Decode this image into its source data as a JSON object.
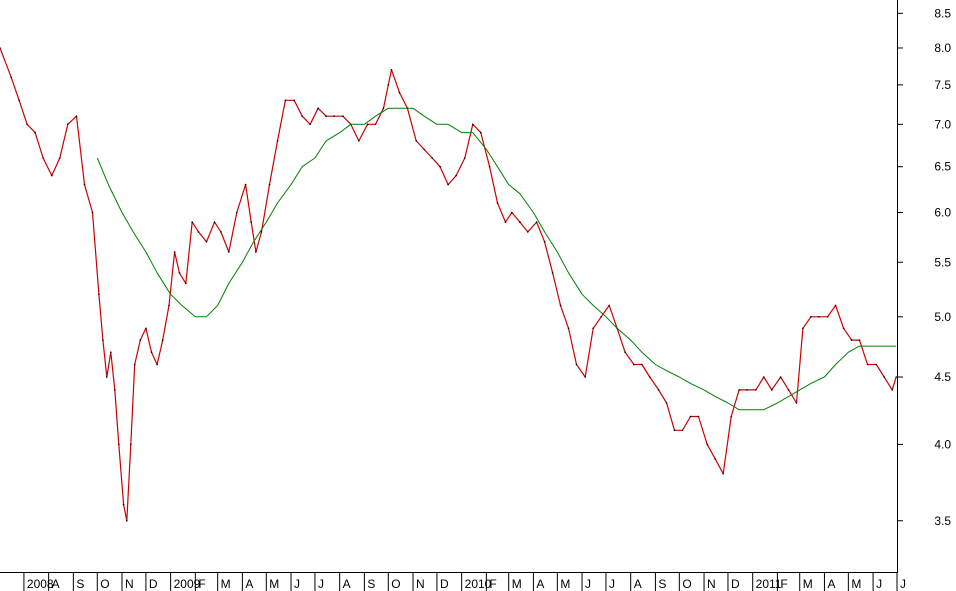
{
  "chart_data": {
    "type": "line",
    "title": "",
    "xlabel": "",
    "ylabel": "",
    "y_scale": "log",
    "ylim": [
      3.2,
      8.7
    ],
    "xlim": [
      "2008-06-01",
      "2011-07-01"
    ],
    "y_ticks": [
      "3.5",
      "4.0",
      "4.5",
      "5.0",
      "5.5",
      "6.0",
      "6.5",
      "7.0",
      "7.5",
      "8.0",
      "8.5"
    ],
    "x_ticks": [
      "2008",
      "A",
      "S",
      "O",
      "N",
      "D",
      "2009",
      "F",
      "M",
      "A",
      "M",
      "J",
      "J",
      "A",
      "S",
      "O",
      "N",
      "D",
      "2010",
      "F",
      "M",
      "A",
      "M",
      "J",
      "J",
      "A",
      "S",
      "O",
      "N",
      "D",
      "2011",
      "F",
      "M",
      "A",
      "M",
      "J",
      "J"
    ],
    "x_tick_dates": [
      "2008-07-01",
      "2008-08-01",
      "2008-09-01",
      "2008-10-01",
      "2008-11-01",
      "2008-12-01",
      "2009-01-01",
      "2009-02-01",
      "2009-03-01",
      "2009-04-01",
      "2009-05-01",
      "2009-06-01",
      "2009-07-01",
      "2009-08-01",
      "2009-09-01",
      "2009-10-01",
      "2009-11-01",
      "2009-12-01",
      "2010-01-01",
      "2010-02-01",
      "2010-03-01",
      "2010-04-01",
      "2010-05-01",
      "2010-06-01",
      "2010-07-01",
      "2010-08-01",
      "2010-09-01",
      "2010-10-01",
      "2010-11-01",
      "2010-12-01",
      "2011-01-01",
      "2011-02-01",
      "2011-03-01",
      "2011-04-01",
      "2011-05-01",
      "2011-06-01",
      "2011-07-01"
    ],
    "grid": false,
    "series": [
      {
        "color": "#cc0000",
        "x": [
          "2008-06-01",
          "2008-06-15",
          "2008-06-25",
          "2008-07-05",
          "2008-07-15",
          "2008-07-25",
          "2008-08-05",
          "2008-08-15",
          "2008-08-25",
          "2008-09-05",
          "2008-09-15",
          "2008-09-25",
          "2008-10-03",
          "2008-10-08",
          "2008-10-13",
          "2008-10-18",
          "2008-10-23",
          "2008-10-28",
          "2008-11-03",
          "2008-11-07",
          "2008-11-12",
          "2008-11-17",
          "2008-11-24",
          "2008-12-01",
          "2008-12-08",
          "2008-12-15",
          "2008-12-22",
          "2008-12-30",
          "2009-01-06",
          "2009-01-12",
          "2009-01-20",
          "2009-01-28",
          "2009-02-05",
          "2009-02-15",
          "2009-02-25",
          "2009-03-05",
          "2009-03-15",
          "2009-03-25",
          "2009-04-05",
          "2009-04-12",
          "2009-04-18",
          "2009-04-25",
          "2009-05-05",
          "2009-05-15",
          "2009-05-25",
          "2009-06-05",
          "2009-06-15",
          "2009-06-25",
          "2009-07-05",
          "2009-07-15",
          "2009-07-25",
          "2009-08-05",
          "2009-08-15",
          "2009-08-25",
          "2009-09-05",
          "2009-09-15",
          "2009-09-25",
          "2009-10-01",
          "2009-10-05",
          "2009-10-15",
          "2009-10-25",
          "2009-11-05",
          "2009-11-15",
          "2009-11-25",
          "2009-12-05",
          "2009-12-15",
          "2009-12-25",
          "2010-01-05",
          "2010-01-15",
          "2010-01-25",
          "2010-02-05",
          "2010-02-15",
          "2010-02-25",
          "2010-03-05",
          "2010-03-15",
          "2010-03-25",
          "2010-04-05",
          "2010-04-15",
          "2010-04-25",
          "2010-05-05",
          "2010-05-15",
          "2010-05-25",
          "2010-06-05",
          "2010-06-15",
          "2010-06-25",
          "2010-07-05",
          "2010-07-15",
          "2010-07-25",
          "2010-08-05",
          "2010-08-15",
          "2010-08-25",
          "2010-09-05",
          "2010-09-15",
          "2010-09-25",
          "2010-10-05",
          "2010-10-15",
          "2010-10-25",
          "2010-11-05",
          "2010-11-15",
          "2010-11-25",
          "2010-12-05",
          "2010-12-15",
          "2010-12-25",
          "2011-01-05",
          "2011-01-15",
          "2011-01-25",
          "2011-02-05",
          "2011-02-15",
          "2011-02-25",
          "2011-03-05",
          "2011-03-15",
          "2011-03-25",
          "2011-04-05",
          "2011-04-15",
          "2011-04-25",
          "2011-05-05",
          "2011-05-15",
          "2011-05-25",
          "2011-06-05",
          "2011-06-15",
          "2011-06-25",
          "2011-06-30"
        ],
        "y": [
          8.0,
          7.6,
          7.3,
          7.0,
          6.9,
          6.6,
          6.4,
          6.6,
          7.0,
          7.1,
          6.3,
          6.0,
          5.2,
          4.8,
          4.5,
          4.7,
          4.4,
          4.0,
          3.6,
          3.5,
          4.0,
          4.6,
          4.8,
          4.9,
          4.7,
          4.6,
          4.8,
          5.1,
          5.6,
          5.4,
          5.3,
          5.9,
          5.8,
          5.7,
          5.9,
          5.8,
          5.6,
          6.0,
          6.3,
          5.9,
          5.6,
          5.8,
          6.3,
          6.8,
          7.3,
          7.3,
          7.1,
          7.0,
          7.2,
          7.1,
          7.1,
          7.1,
          7.0,
          6.8,
          7.0,
          7.0,
          7.2,
          7.5,
          7.7,
          7.4,
          7.2,
          6.8,
          6.7,
          6.6,
          6.5,
          6.3,
          6.4,
          6.6,
          7.0,
          6.9,
          6.5,
          6.1,
          5.9,
          6.0,
          5.9,
          5.8,
          5.9,
          5.7,
          5.4,
          5.1,
          4.9,
          4.6,
          4.5,
          4.9,
          5.0,
          5.1,
          4.9,
          4.7,
          4.6,
          4.6,
          4.5,
          4.4,
          4.3,
          4.1,
          4.1,
          4.2,
          4.2,
          4.0,
          3.9,
          3.8,
          4.2,
          4.4,
          4.4,
          4.4,
          4.5,
          4.4,
          4.5,
          4.4,
          4.3,
          4.9,
          5.0,
          5.0,
          5.0,
          5.1,
          4.9,
          4.8,
          4.8,
          4.6,
          4.6,
          4.5,
          4.4,
          4.5
        ]
      },
      {
        "color": "#008000",
        "x": [
          "2008-10-01",
          "2008-10-15",
          "2008-11-01",
          "2008-11-15",
          "2008-12-01",
          "2008-12-15",
          "2009-01-01",
          "2009-01-15",
          "2009-02-01",
          "2009-02-15",
          "2009-03-01",
          "2009-03-15",
          "2009-04-01",
          "2009-04-15",
          "2009-05-01",
          "2009-05-15",
          "2009-06-01",
          "2009-06-15",
          "2009-07-01",
          "2009-07-15",
          "2009-08-01",
          "2009-08-15",
          "2009-09-01",
          "2009-09-15",
          "2009-10-01",
          "2009-10-15",
          "2009-11-01",
          "2009-11-15",
          "2009-12-01",
          "2009-12-15",
          "2010-01-01",
          "2010-01-15",
          "2010-02-01",
          "2010-02-15",
          "2010-03-01",
          "2010-03-15",
          "2010-04-01",
          "2010-04-15",
          "2010-05-01",
          "2010-05-15",
          "2010-06-01",
          "2010-06-15",
          "2010-07-01",
          "2010-07-15",
          "2010-08-01",
          "2010-08-15",
          "2010-09-01",
          "2010-09-15",
          "2010-10-01",
          "2010-10-15",
          "2010-11-01",
          "2010-11-15",
          "2010-12-01",
          "2010-12-15",
          "2011-01-01",
          "2011-01-15",
          "2011-02-01",
          "2011-02-15",
          "2011-03-01",
          "2011-03-15",
          "2011-04-01",
          "2011-04-15",
          "2011-05-01",
          "2011-05-15",
          "2011-06-01",
          "2011-06-15",
          "2011-06-30"
        ],
        "y": [
          6.6,
          6.3,
          6.0,
          5.8,
          5.6,
          5.4,
          5.2,
          5.1,
          5.0,
          5.0,
          5.1,
          5.3,
          5.5,
          5.7,
          5.9,
          6.1,
          6.3,
          6.5,
          6.6,
          6.8,
          6.9,
          7.0,
          7.0,
          7.1,
          7.2,
          7.2,
          7.2,
          7.1,
          7.0,
          7.0,
          6.9,
          6.9,
          6.7,
          6.5,
          6.3,
          6.2,
          6.0,
          5.8,
          5.6,
          5.4,
          5.2,
          5.1,
          5.0,
          4.9,
          4.8,
          4.7,
          4.6,
          4.55,
          4.5,
          4.45,
          4.4,
          4.35,
          4.3,
          4.25,
          4.25,
          4.25,
          4.3,
          4.35,
          4.4,
          4.45,
          4.5,
          4.6,
          4.7,
          4.75,
          4.75,
          4.75,
          4.75
        ]
      }
    ]
  }
}
